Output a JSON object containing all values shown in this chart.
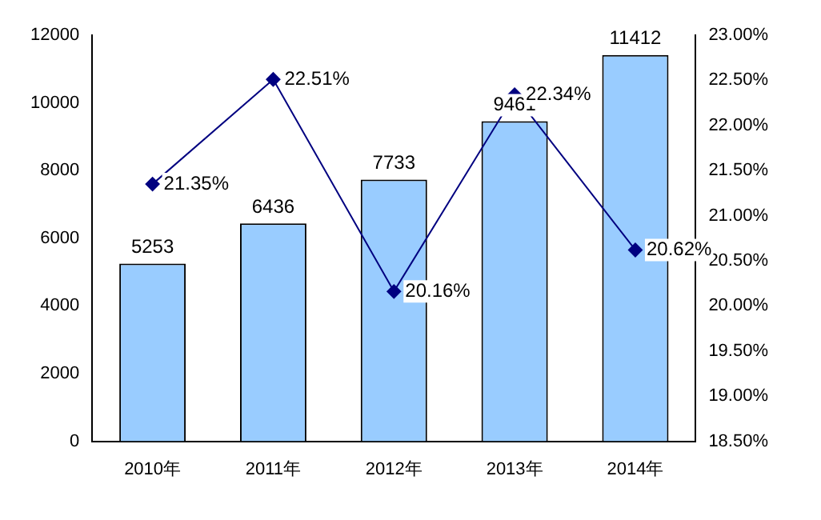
{
  "chart_data": {
    "type": "bar",
    "categories": [
      "2010年",
      "2011年",
      "2012年",
      "2013年",
      "2014年"
    ],
    "series": [
      {
        "color": "#99ccff",
        "values": [
          5253,
          6436,
          7733,
          9461,
          11412
        ],
        "value_labels": [
          "5253",
          "6436",
          "7733",
          "9461",
          "11412"
        ]
      },
      {
        "type": "line",
        "axis": "y2",
        "color": "#000080",
        "marker": "diamond",
        "values": [
          21.35,
          22.51,
          20.16,
          22.34,
          20.62
        ],
        "value_labels": [
          "21.35%",
          "22.51%",
          "20.16%",
          "22.34%",
          "20.62%"
        ]
      }
    ],
    "ylim": [
      0,
      12000
    ],
    "yticks": [
      0,
      2000,
      4000,
      6000,
      8000,
      10000,
      12000
    ],
    "y2lim": [
      18.5,
      23
    ],
    "y2ticks": [
      {
        "value": 18.5,
        "label": "18.50%"
      },
      {
        "value": 19,
        "label": "19.00%"
      },
      {
        "value": 19.5,
        "label": "19.50%"
      },
      {
        "value": 20,
        "label": "20.00%"
      },
      {
        "value": 20.5,
        "label": "20.50%"
      },
      {
        "value": 21,
        "label": "21.00%"
      },
      {
        "value": 21.5,
        "label": "21.50%"
      },
      {
        "value": 22,
        "label": "22.00%"
      },
      {
        "value": 22.5,
        "label": "22.50%"
      },
      {
        "value": 23,
        "label": "23.00%"
      }
    ],
    "grid": false,
    "legend": false
  }
}
